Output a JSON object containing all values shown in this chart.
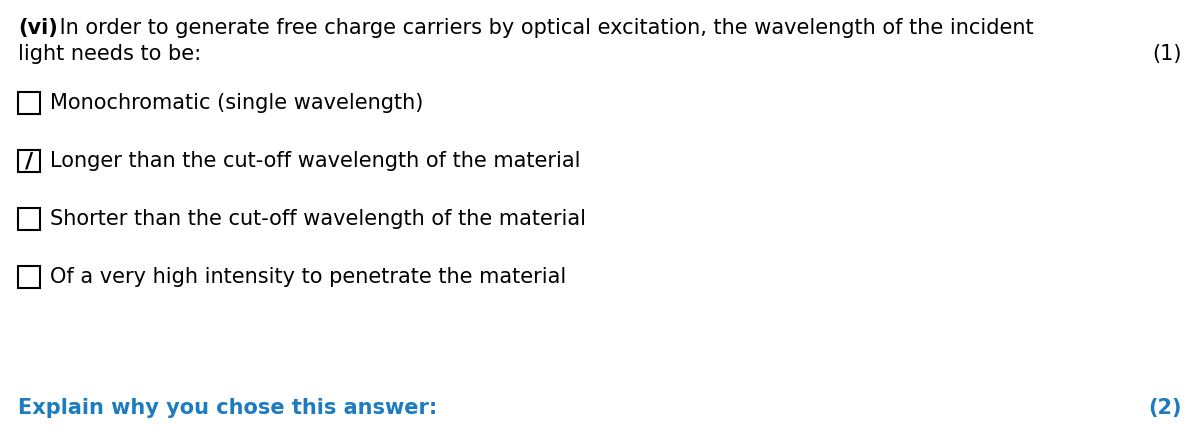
{
  "background_color": "#ffffff",
  "question_prefix": "(vi)",
  "question_line1": " In order to generate free charge carriers by optical excitation, the wavelength of the incident",
  "question_line2": "light needs to be:",
  "marks_1": "(1)",
  "options": [
    {
      "text": "Monochromatic (single wavelength)",
      "ticked": false
    },
    {
      "text": "Longer than the cut-off wavelength of the material",
      "ticked": true
    },
    {
      "text": "Shorter than the cut-off wavelength of the material",
      "ticked": false
    },
    {
      "text": "Of a very high intensity to penetrate the material",
      "ticked": false
    }
  ],
  "explain_text": "Explain why you chose this answer:",
  "marks_2": "(2)",
  "text_color": "#000000",
  "blue_color": "#1d7bbf",
  "fig_width": 12.0,
  "fig_height": 4.28,
  "dpi": 100
}
